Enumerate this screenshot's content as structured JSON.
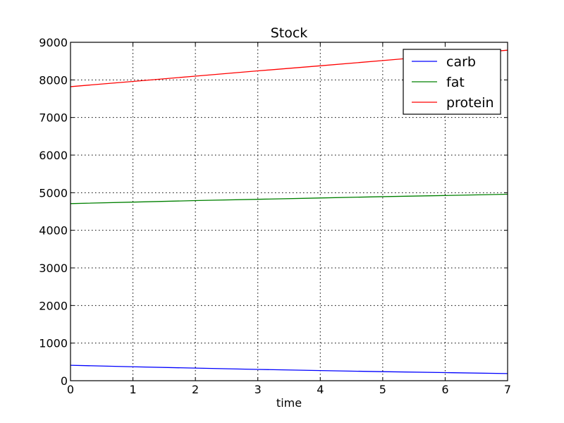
{
  "chart_data": {
    "type": "line",
    "title": "Stock",
    "xlabel": "time",
    "ylabel": "",
    "xlim": [
      0,
      7
    ],
    "ylim": [
      0,
      9000
    ],
    "xticks": [
      0,
      1,
      2,
      3,
      4,
      5,
      6,
      7
    ],
    "yticks": [
      0,
      1000,
      2000,
      3000,
      4000,
      5000,
      6000,
      7000,
      8000,
      9000
    ],
    "grid": true,
    "legend_position": "top-right",
    "series": [
      {
        "name": "carb",
        "color": "#0000ff",
        "x": [
          0,
          1,
          2,
          3,
          4,
          5,
          6,
          7
        ],
        "y": [
          410,
          370,
          335,
          300,
          270,
          240,
          215,
          190
        ]
      },
      {
        "name": "fat",
        "color": "#008000",
        "x": [
          0,
          1,
          2,
          3,
          4,
          5,
          6,
          7
        ],
        "y": [
          4710,
          4750,
          4790,
          4825,
          4860,
          4895,
          4925,
          4960
        ]
      },
      {
        "name": "protein",
        "color": "#ff0000",
        "x": [
          0,
          1,
          2,
          3,
          4,
          5,
          6,
          7
        ],
        "y": [
          7820,
          7960,
          8100,
          8240,
          8375,
          8515,
          8655,
          8790
        ]
      }
    ]
  }
}
